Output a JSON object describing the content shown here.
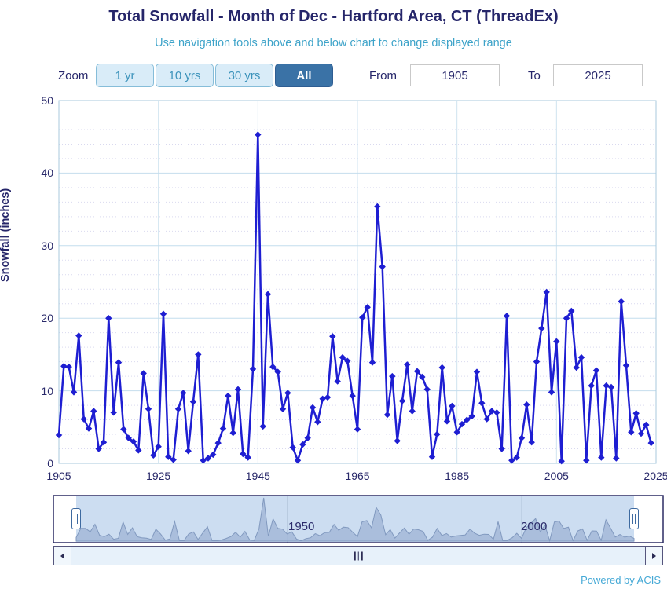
{
  "header": {
    "title": "Total Snowfall - Month of Dec - Hartford Area, CT (ThreadEx)",
    "subtitle": "Use navigation tools above and below chart to change displayed range"
  },
  "toolbar": {
    "zoom_label": "Zoom",
    "buttons": [
      {
        "label": "1 yr",
        "selected": false
      },
      {
        "label": "10 yrs",
        "selected": false
      },
      {
        "label": "30 yrs",
        "selected": false
      },
      {
        "label": "All",
        "selected": true
      }
    ],
    "from_label": "From",
    "from_value": "1905",
    "to_label": "To",
    "to_value": "2025"
  },
  "chart_data": {
    "type": "line",
    "title": "Total Snowfall - Month of Dec - Hartford Area, CT (ThreadEx)",
    "xlabel": "",
    "ylabel": "Snowfall (inches)",
    "ylim": [
      0,
      50
    ],
    "xlim": [
      1905,
      2025
    ],
    "y_ticks": [
      0,
      10,
      20,
      30,
      40,
      50
    ],
    "x_ticks": [
      1905,
      1925,
      1945,
      1965,
      1985,
      2005,
      2025
    ],
    "grid": true,
    "legend": false,
    "series_color": "#1e1ed2",
    "marker": "diamond",
    "points": [
      [
        1905,
        3.9
      ],
      [
        1906,
        13.4
      ],
      [
        1907,
        13.3
      ],
      [
        1908,
        9.8
      ],
      [
        1909,
        17.6
      ],
      [
        1910,
        6.1
      ],
      [
        1911,
        4.8
      ],
      [
        1912,
        7.2
      ],
      [
        1913,
        2.0
      ],
      [
        1914,
        2.9
      ],
      [
        1915,
        20.0
      ],
      [
        1916,
        7.0
      ],
      [
        1917,
        13.9
      ],
      [
        1918,
        4.7
      ],
      [
        1919,
        3.5
      ],
      [
        1920,
        3.0
      ],
      [
        1921,
        1.8
      ],
      [
        1922,
        12.4
      ],
      [
        1923,
        7.5
      ],
      [
        1924,
        1.1
      ],
      [
        1925,
        2.3
      ],
      [
        1926,
        20.6
      ],
      [
        1927,
        0.9
      ],
      [
        1928,
        0.5
      ],
      [
        1929,
        7.5
      ],
      [
        1930,
        9.7
      ],
      [
        1931,
        1.7
      ],
      [
        1932,
        8.5
      ],
      [
        1933,
        15.0
      ],
      [
        1934,
        0.4
      ],
      [
        1935,
        0.7
      ],
      [
        1936,
        1.2
      ],
      [
        1937,
        2.8
      ],
      [
        1938,
        4.8
      ],
      [
        1939,
        9.3
      ],
      [
        1940,
        4.2
      ],
      [
        1941,
        10.2
      ],
      [
        1942,
        1.3
      ],
      [
        1943,
        0.8
      ],
      [
        1944,
        13.0
      ],
      [
        1945,
        45.3
      ],
      [
        1946,
        5.1
      ],
      [
        1947,
        23.3
      ],
      [
        1948,
        13.3
      ],
      [
        1949,
        12.6
      ],
      [
        1950,
        7.5
      ],
      [
        1951,
        9.7
      ],
      [
        1952,
        2.2
      ],
      [
        1953,
        0.4
      ],
      [
        1954,
        2.6
      ],
      [
        1955,
        3.5
      ],
      [
        1956,
        7.7
      ],
      [
        1957,
        5.7
      ],
      [
        1958,
        8.9
      ],
      [
        1959,
        9.1
      ],
      [
        1960,
        17.5
      ],
      [
        1961,
        11.3
      ],
      [
        1962,
        14.6
      ],
      [
        1963,
        14.1
      ],
      [
        1964,
        9.3
      ],
      [
        1965,
        4.7
      ],
      [
        1966,
        20.1
      ],
      [
        1967,
        21.5
      ],
      [
        1968,
        13.9
      ],
      [
        1969,
        35.4
      ],
      [
        1970,
        27.1
      ],
      [
        1971,
        6.7
      ],
      [
        1972,
        12.0
      ],
      [
        1973,
        3.1
      ],
      [
        1974,
        8.6
      ],
      [
        1975,
        13.6
      ],
      [
        1976,
        7.2
      ],
      [
        1977,
        12.7
      ],
      [
        1978,
        11.9
      ],
      [
        1979,
        10.2
      ],
      [
        1980,
        0.9
      ],
      [
        1981,
        4.0
      ],
      [
        1982,
        13.2
      ],
      [
        1983,
        5.8
      ],
      [
        1984,
        7.9
      ],
      [
        1985,
        4.3
      ],
      [
        1986,
        5.4
      ],
      [
        1987,
        6.0
      ],
      [
        1988,
        6.5
      ],
      [
        1989,
        12.6
      ],
      [
        1990,
        8.3
      ],
      [
        1991,
        6.1
      ],
      [
        1992,
        7.2
      ],
      [
        1993,
        7.0
      ],
      [
        1994,
        2.0
      ],
      [
        1995,
        20.3
      ],
      [
        1996,
        0.4
      ],
      [
        1997,
        0.8
      ],
      [
        1998,
        3.5
      ],
      [
        1999,
        8.1
      ],
      [
        2000,
        2.9
      ],
      [
        2001,
        14.0
      ],
      [
        2002,
        18.6
      ],
      [
        2003,
        23.6
      ],
      [
        2004,
        9.8
      ],
      [
        2005,
        16.8
      ],
      [
        2006,
        0.3
      ],
      [
        2007,
        20.0
      ],
      [
        2008,
        21.0
      ],
      [
        2009,
        13.2
      ],
      [
        2010,
        14.6
      ],
      [
        2011,
        0.4
      ],
      [
        2012,
        10.7
      ],
      [
        2013,
        12.8
      ],
      [
        2014,
        0.8
      ],
      [
        2015,
        10.7
      ],
      [
        2016,
        10.5
      ],
      [
        2017,
        0.7
      ],
      [
        2018,
        22.3
      ],
      [
        2019,
        13.5
      ],
      [
        2020,
        4.3
      ],
      [
        2021,
        6.9
      ],
      [
        2022,
        4.1
      ],
      [
        2023,
        5.3
      ],
      [
        2024,
        2.8
      ]
    ]
  },
  "navigator": {
    "labels": [
      "1950",
      "2000"
    ],
    "label_years": [
      1950,
      2000
    ]
  },
  "footer": {
    "powered_by": "Powered by ACIS"
  },
  "colors": {
    "series": "#1e1ed2",
    "title_text": "#26266a",
    "subtitle_text": "#3da3c9",
    "major_grid": "#c4dded",
    "minor_grid": "#d9d9ef",
    "vertical_grid": "#cfe3f0",
    "axis_line": "#a9cade",
    "selected_button_bg": "#3a72a6",
    "button_bg": "#d9ecf8",
    "button_text": "#3c93bb",
    "nav_area_fill": "#a3b8d8",
    "nav_area_line": "#8199bf",
    "nav_selection_bg": "#ccddf1",
    "nav_frame": "#2c2c64"
  }
}
